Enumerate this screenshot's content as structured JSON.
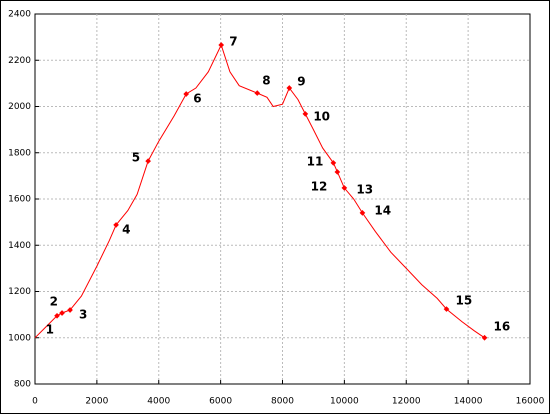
{
  "chart_data": {
    "type": "line",
    "xlim": [
      0,
      16000
    ],
    "ylim": [
      800,
      2400
    ],
    "xticks": [
      0,
      2000,
      4000,
      6000,
      8000,
      10000,
      12000,
      14000,
      16000
    ],
    "yticks": [
      800,
      1000,
      1200,
      1400,
      1600,
      1800,
      2000,
      2200,
      2400
    ],
    "grid": true,
    "series": [
      {
        "color": "#ff0000",
        "x": [
          0,
          300,
          712,
          874,
          1133,
          1500,
          2000,
          2400,
          2621,
          3000,
          3300,
          3657,
          4000,
          4500,
          4887,
          5200,
          5600,
          6019,
          6300,
          6600,
          7184,
          7500,
          7700,
          8000,
          8220,
          8500,
          8738,
          9000,
          9300,
          9644,
          9773,
          9999,
          10300,
          10583,
          11000,
          11500,
          12000,
          12500,
          13000,
          13301,
          13800,
          14200,
          14531
        ],
        "values": [
          1000,
          1040,
          1095,
          1107,
          1120,
          1180,
          1310,
          1420,
          1488,
          1550,
          1620,
          1764,
          1850,
          1960,
          2054,
          2080,
          2150,
          2266,
          2150,
          2090,
          2058,
          2040,
          2000,
          2010,
          2080,
          2030,
          1968,
          1900,
          1820,
          1756,
          1717,
          1648,
          1600,
          1540,
          1460,
          1370,
          1300,
          1230,
          1170,
          1124,
          1070,
          1030,
          1000
        ]
      }
    ],
    "points": {
      "color": "#ff0000",
      "labels": [
        "1",
        "2",
        "3",
        "4",
        "5",
        "6",
        "7",
        "8",
        "9",
        "10",
        "11",
        "12",
        "13",
        "14",
        "15",
        "16"
      ],
      "x": [
        712,
        874,
        1133,
        2621,
        3657,
        4887,
        6019,
        7184,
        8220,
        8738,
        9644,
        9773,
        9999,
        10583,
        13301,
        14531
      ],
      "values": [
        1095,
        1107,
        1120,
        1488,
        1764,
        2054,
        2266,
        2058,
        2080,
        1968,
        1756,
        1717,
        1648,
        1540,
        1124,
        1000
      ]
    }
  }
}
